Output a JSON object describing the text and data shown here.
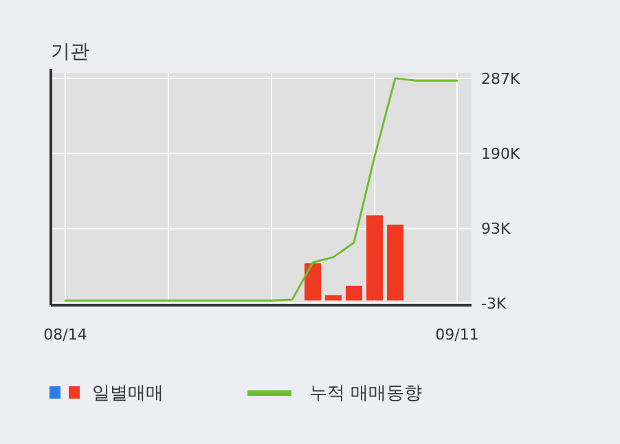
{
  "chart_data": {
    "type": "bar",
    "title": "기관",
    "categories": [
      "08/14",
      null,
      null,
      null,
      null,
      null,
      null,
      null,
      null,
      null,
      null,
      null,
      null,
      null,
      null,
      null,
      null,
      null,
      null,
      "09/11"
    ],
    "series": [
      {
        "name": "일별매매",
        "color": "#f03a22",
        "values": [
          null,
          null,
          null,
          null,
          null,
          null,
          null,
          null,
          null,
          null,
          null,
          null,
          48,
          7,
          19,
          110,
          98,
          null,
          null,
          null
        ]
      },
      {
        "name": "누적 매매동향",
        "type": "line",
        "color": "#6cbf2c",
        "values": [
          0,
          0,
          0,
          0,
          0,
          0,
          0,
          0,
          0,
          0,
          0,
          1,
          49,
          56,
          75,
          186,
          287,
          284,
          284,
          284
        ]
      }
    ],
    "ylim": [
      -6,
      294
    ],
    "yticks": [
      {
        "value": -3,
        "label": "-3K"
      },
      {
        "value": 93,
        "label": "93K"
      },
      {
        "value": 190,
        "label": "190K"
      },
      {
        "value": 287,
        "label": "287K"
      }
    ],
    "grid": true,
    "legend": "bottom"
  }
}
